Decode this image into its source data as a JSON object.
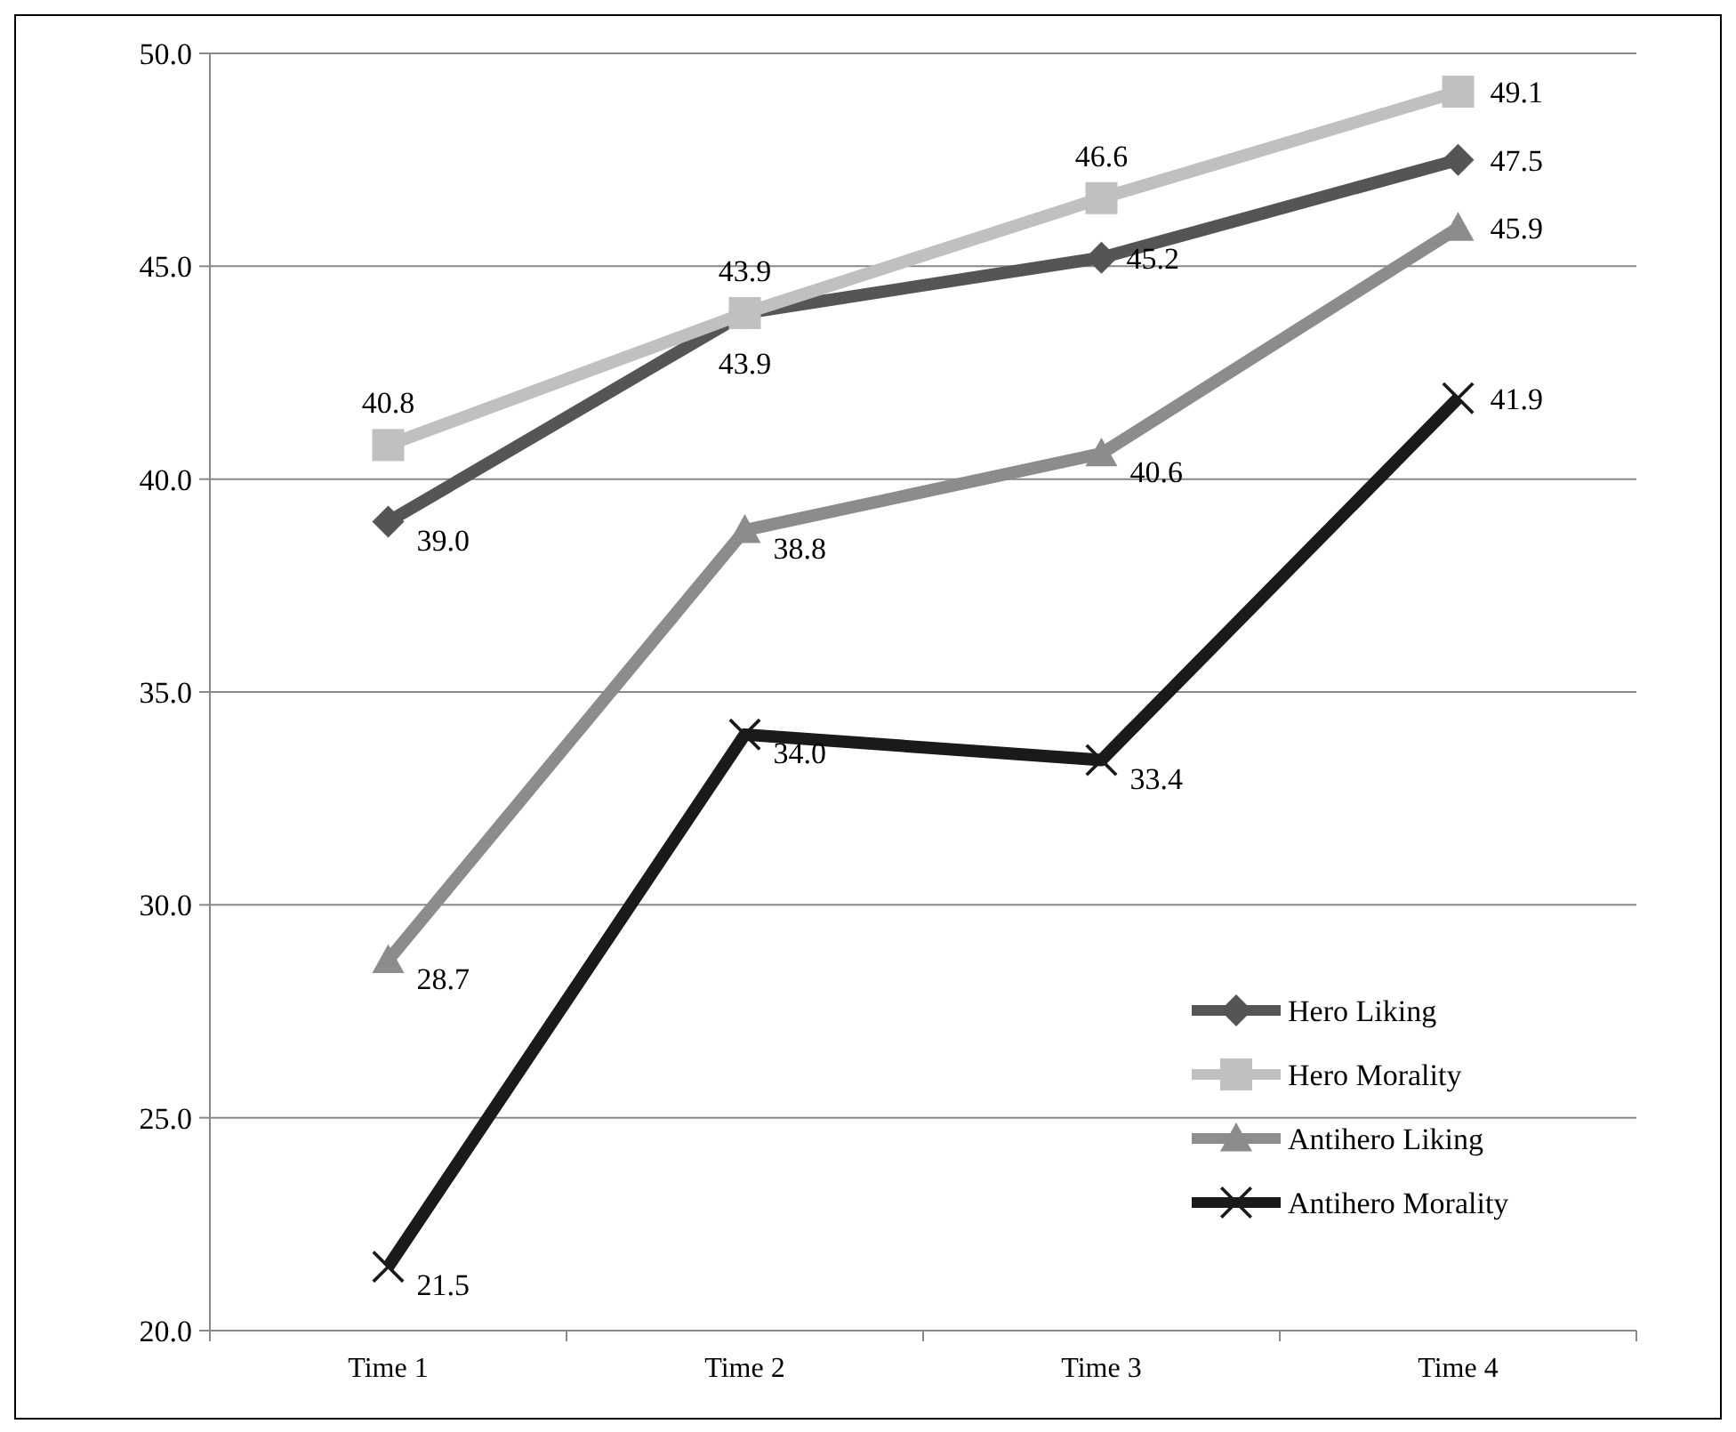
{
  "chart_data": {
    "type": "line",
    "categories": [
      "Time 1",
      "Time 2",
      "Time 3",
      "Time 4"
    ],
    "series": [
      {
        "name": "Hero Liking",
        "color": "#555555",
        "marker": "diamond",
        "values": [
          39.0,
          43.9,
          45.2,
          47.5
        ],
        "value_labels": [
          "39.0",
          "43.9",
          "45.2",
          "47.5"
        ]
      },
      {
        "name": "Hero Morality",
        "color": "#c0c0c0",
        "marker": "square",
        "values": [
          40.8,
          43.9,
          46.6,
          49.1
        ],
        "value_labels": [
          "40.8",
          "43.9",
          "46.6",
          "49.1"
        ]
      },
      {
        "name": "Antihero Liking",
        "color": "#8c8c8c",
        "marker": "triangle",
        "values": [
          28.7,
          38.8,
          40.6,
          45.9
        ],
        "value_labels": [
          "28.7",
          "38.8",
          "40.6",
          "45.9"
        ]
      },
      {
        "name": "Antihero Morality",
        "color": "#1a1a1a",
        "marker": "cross",
        "values": [
          21.5,
          34.0,
          33.4,
          41.9
        ],
        "value_labels": [
          "21.5",
          "34.0",
          "33.4",
          "41.9"
        ]
      }
    ],
    "ylim": [
      20,
      50
    ],
    "yticks": [
      {
        "value": 20,
        "label": "20.0"
      },
      {
        "value": 25,
        "label": "25.0"
      },
      {
        "value": 30,
        "label": "30.0"
      },
      {
        "value": 35,
        "label": "35.0"
      },
      {
        "value": 40,
        "label": "40.0"
      },
      {
        "value": 45,
        "label": "45.0"
      },
      {
        "value": 50,
        "label": "50.0"
      }
    ],
    "grid": "y",
    "legend": "bottom right"
  }
}
